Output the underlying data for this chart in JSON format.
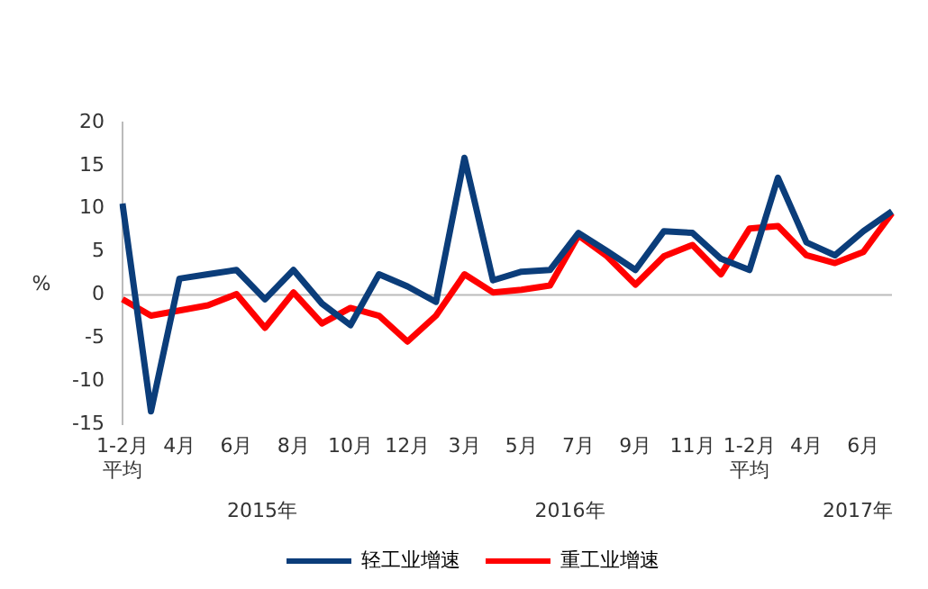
{
  "chart_data": {
    "type": "line",
    "ylabel": "%",
    "categories": [
      "1-2月平均",
      null,
      "4月",
      null,
      "6月",
      null,
      "8月",
      null,
      "10月",
      null,
      "12月",
      null,
      "3月",
      null,
      "5月",
      null,
      "7月",
      null,
      "9月",
      null,
      "11月",
      null,
      "1-2月平均",
      null,
      "4月",
      null,
      "6月",
      null
    ],
    "series": [
      {
        "name": "轻工业增速",
        "color": "#0b3d7a",
        "values": [
          10.6,
          -13.5,
          1.9,
          2.4,
          2.9,
          -0.5,
          2.9,
          -1,
          -3.5,
          2.4,
          1,
          -0.8,
          15.9,
          1.7,
          2.7,
          2.9,
          7.2,
          5.1,
          2.9,
          7.4,
          7.2,
          4.2,
          2.9,
          13.6,
          6.1,
          4.6,
          7.4,
          9.7
        ]
      },
      {
        "name": "重工业增速",
        "color": "#ff0000",
        "values": [
          -0.5,
          -2.4,
          -1.8,
          -1.2,
          0.1,
          -3.8,
          0.3,
          -3.3,
          -1.5,
          -2.4,
          -5.4,
          -2.4,
          2.4,
          0.3,
          0.6,
          1.1,
          6.9,
          4.5,
          1.2,
          4.5,
          5.8,
          2.4,
          7.7,
          8,
          4.6,
          3.7,
          5,
          9.5
        ]
      }
    ],
    "ylim": [
      -15,
      20
    ],
    "yticks": [
      -15,
      -10,
      -5,
      0,
      5,
      10,
      15,
      20
    ],
    "grid": false,
    "ref_lines": [
      {
        "axis": "y",
        "value": 0,
        "color": "#bbbbbb"
      }
    ],
    "legend": "bottom",
    "marker": "none",
    "line_style": "solid",
    "annotations": [
      "2015年",
      "2016年",
      "2017年"
    ]
  }
}
